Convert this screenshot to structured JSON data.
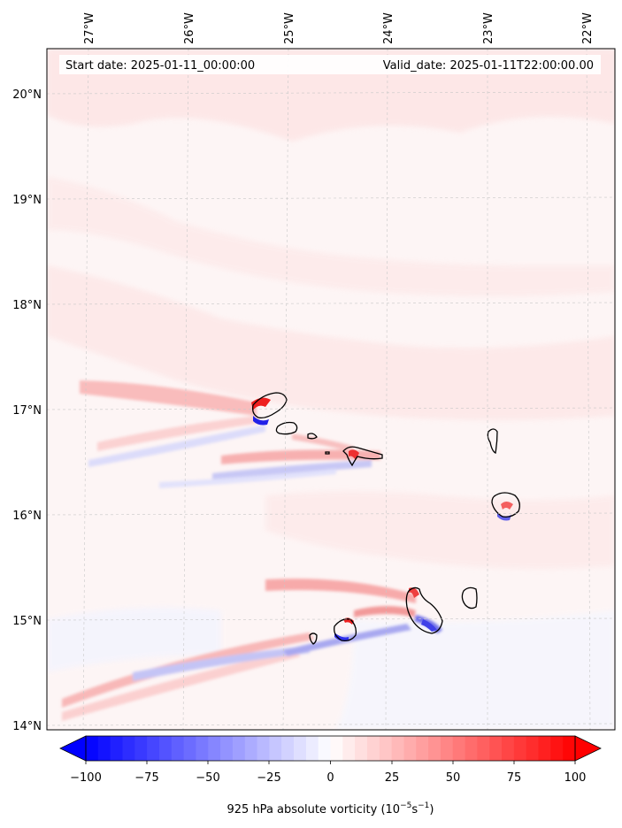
{
  "map": {
    "title_start": "Start date: 2025-01-11_00:00:00",
    "title_valid": "Valid_date: 2025-01-11T22:00:00.00",
    "lon_labels": [
      "27°W",
      "26°W",
      "25°W",
      "24°W",
      "23°W",
      "22°W"
    ],
    "lat_labels": [
      "20°N",
      "19°N",
      "18°N",
      "17°N",
      "16°N",
      "15°N",
      "14°N"
    ],
    "lon_range": [
      -27.4,
      -21.8
    ],
    "lat_range": [
      13.95,
      20.45
    ],
    "background_color": "#fdf4f4",
    "positive_color": "#ff0000",
    "negative_color": "#0000ff"
  },
  "colorbar": {
    "ticks": [
      "−100",
      "−75",
      "−50",
      "−25",
      "0",
      "25",
      "50",
      "75",
      "100"
    ],
    "range": [
      -100,
      100
    ],
    "label_prefix": "925 hPa absolute vorticity (10",
    "label_exp1": "−5",
    "label_mid": "s",
    "label_exp2": "−1",
    "label_suffix": ")"
  }
}
